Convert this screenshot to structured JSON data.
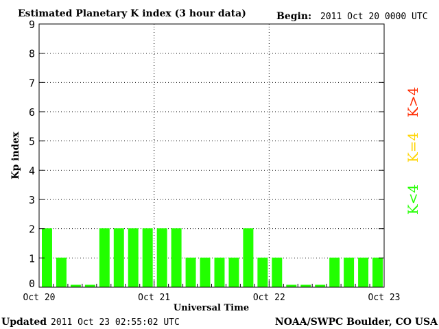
{
  "header": {
    "title": "Estimated Planetary K index (3 hour data)",
    "begin_label": "Begin:",
    "begin_value": "2011 Oct 20 0000 UTC"
  },
  "footer": {
    "updated_label": "Updated",
    "updated_value": "2011 Oct 23 02:55:02 UTC",
    "source": "NOAA/SWPC Boulder, CO USA"
  },
  "legend": {
    "high": {
      "text": "K>4",
      "color": "#ff2a00"
    },
    "mid": {
      "text": "K=4",
      "color": "#ffd400"
    },
    "low": {
      "text": "K<4",
      "color": "#22ff00"
    }
  },
  "chart_data": {
    "type": "bar",
    "title": "Estimated Planetary K index (3 hour data)",
    "xlabel": "Universal Time",
    "ylabel": "Kp index",
    "ylim": [
      0,
      9
    ],
    "yticks": [
      0,
      1,
      2,
      3,
      4,
      5,
      6,
      7,
      8,
      9
    ],
    "xtick_labels": [
      "Oct 20",
      "Oct 21",
      "Oct 22",
      "Oct 23"
    ],
    "xlim": [
      "2011 Oct 20 0000 UTC",
      "2011 Oct 23 0000 UTC"
    ],
    "interval_hours": 3,
    "grid": "dotted vertical lines at day boundaries",
    "bar_color": "#22ff00",
    "values": [
      2,
      1,
      0,
      0,
      2,
      2,
      2,
      2,
      2,
      2,
      1,
      1,
      1,
      1,
      2,
      1,
      1,
      0,
      0,
      0,
      1,
      1,
      1,
      1
    ]
  }
}
